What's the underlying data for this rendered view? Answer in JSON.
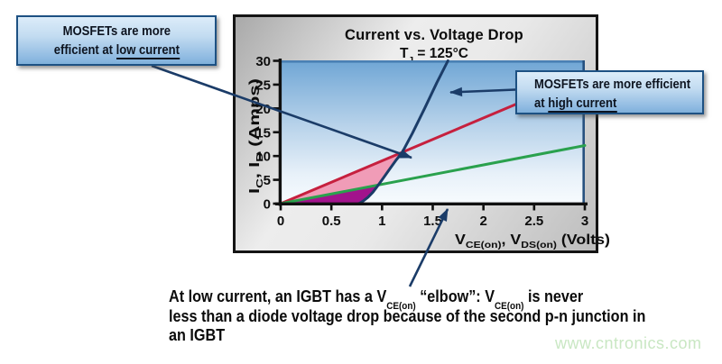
{
  "chart_data": {
    "type": "line",
    "title": "Current vs. Voltage Drop",
    "subtitle_parts": {
      "a": "T",
      "a_sub": "J",
      "b": " = 125°C"
    },
    "xlabel_parts": {
      "a": "V",
      "a_sub": "CE(on)",
      "b": ", V",
      "b_sub": "DS(on)",
      "c": " (Volts)"
    },
    "ylabel_parts": {
      "a": "I",
      "a_sub": "C",
      "b": ", I",
      "b_sub": "D",
      "c": " (Amps)"
    },
    "xlim": [
      0,
      3
    ],
    "ylim": [
      0,
      30
    ],
    "x_ticks": [
      0,
      0.5,
      1,
      1.5,
      2,
      2.5,
      3
    ],
    "x_tick_labels": [
      "0",
      "0.5",
      "1",
      "1.5",
      "2",
      "2.5",
      "3"
    ],
    "y_ticks": [
      0,
      5,
      10,
      15,
      20,
      25,
      30
    ],
    "y_tick_labels": [
      "0",
      "5",
      "10",
      "15",
      "20",
      "25",
      "30"
    ],
    "grid": false,
    "legend": "none",
    "plot_bg_gradient_top": "#6fa6d5",
    "plot_bg_gradient_bottom": "#f7fbfe",
    "series": [
      {
        "name": "mosfet-line-red",
        "color": "#c6203e",
        "points": [
          [
            0,
            0
          ],
          [
            3,
            27
          ]
        ]
      },
      {
        "name": "mosfet-line-green",
        "color": "#2aa14d",
        "points": [
          [
            0,
            0
          ],
          [
            3,
            12.2
          ]
        ]
      },
      {
        "name": "igbt-elbow-curve-navy",
        "color": "#1b3c68",
        "points": [
          [
            0.77,
            0
          ],
          [
            0.81,
            0.5
          ],
          [
            0.86,
            1.3
          ],
          [
            0.91,
            2.4
          ],
          [
            0.96,
            3.8
          ],
          [
            1.02,
            5.6
          ],
          [
            1.08,
            7.4
          ],
          [
            1.14,
            9.2
          ],
          [
            1.2,
            10.8
          ],
          [
            1.3,
            14.8
          ],
          [
            1.42,
            20.0
          ],
          [
            1.54,
            25.4
          ],
          [
            1.65,
            30
          ]
        ]
      }
    ],
    "regions": [
      {
        "name": "pink",
        "color": "#f09cb7",
        "points": [
          [
            0,
            0
          ],
          [
            1.2,
            10.8
          ],
          [
            1.14,
            9.2
          ],
          [
            1.08,
            7.4
          ],
          [
            1.02,
            5.6
          ],
          [
            0.96,
            3.9
          ]
        ]
      },
      {
        "name": "purple",
        "color": "#a2138c",
        "points": [
          [
            0,
            0
          ],
          [
            0.96,
            3.9
          ],
          [
            0.91,
            2.4
          ],
          [
            0.86,
            1.3
          ],
          [
            0.81,
            0.5
          ],
          [
            0.77,
            0
          ]
        ]
      }
    ]
  },
  "callout_low": {
    "line1": "MOSFETs are more",
    "line2_before": "efficient at ",
    "line2_underlined": "low current"
  },
  "callout_high": {
    "line1": "MOSFETs are more efficient",
    "line2_before": "at ",
    "line2_underlined": "high current"
  },
  "note": {
    "l1a": "At low current, an IGBT has a V",
    "l1s1": "CE(on)",
    "l1b": " “elbow”: V",
    "l1s2": "CE(on)",
    "l1c": " is never",
    "line2": "less than a diode voltage drop because of the second p-n junction in",
    "line3": "an IGBT"
  },
  "watermark": "www.cntronics.com",
  "colors": {
    "navy_lines_arrows": "#1b3c68",
    "red_line": "#c6203e",
    "green_line": "#2aa14d",
    "pink_region": "#f09cb7",
    "purple_region": "#a2138c",
    "callout_border": "#1d5183",
    "callout_fill_top": "#dcecf9",
    "callout_fill_bottom": "#7fb0da",
    "watermark_green": "#c9e7c3"
  }
}
